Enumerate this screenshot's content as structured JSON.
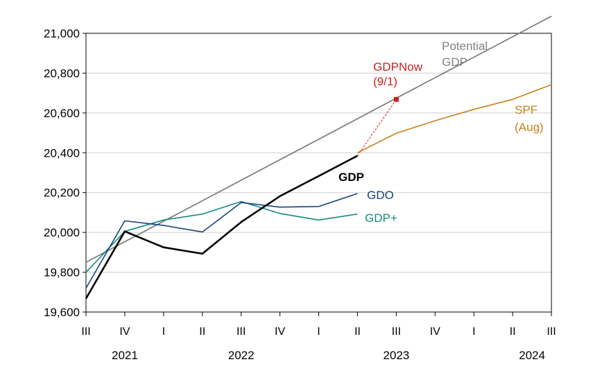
{
  "chart_data": {
    "type": "line",
    "title": "",
    "xlabel": "",
    "ylabel": "",
    "ylim": [
      19600,
      21000
    ],
    "yticks": [
      "19,600",
      "19,800",
      "20,000",
      "20,200",
      "20,400",
      "20,600",
      "20,800",
      "21,000"
    ],
    "ytick_values": [
      19600,
      19800,
      20000,
      20200,
      20400,
      20600,
      20800,
      21000
    ],
    "grid": "horizontal",
    "quarters": [
      "III",
      "IV",
      "I",
      "II",
      "III",
      "IV",
      "I",
      "II",
      "III",
      "IV",
      "I",
      "II",
      "III"
    ],
    "years": [
      {
        "label": "2021",
        "center_index": 1
      },
      {
        "label": "2022",
        "center_index": 4
      },
      {
        "label": "2023",
        "center_index": 8
      },
      {
        "label": "2024",
        "center_index": 11.5
      }
    ],
    "series": [
      {
        "name": "Potential GDP",
        "label_lines": [
          "Potential",
          "GDP"
        ],
        "color": "#808080",
        "values": [
          19850,
          19953,
          20056,
          20159,
          20262,
          20365,
          20468,
          20571,
          20674,
          20777,
          20880,
          20983,
          21086
        ]
      },
      {
        "name": "GDP+",
        "label_lines": [
          "GDP+"
        ],
        "color": "#138a7e",
        "values": [
          19800,
          20005,
          20062,
          20092,
          20155,
          20095,
          20062,
          20092,
          null,
          null,
          null,
          null,
          null
        ]
      },
      {
        "name": "GDO",
        "label_lines": [
          "GDO"
        ],
        "color": "#15437a",
        "values": [
          19720,
          20058,
          20035,
          20002,
          20150,
          20127,
          20130,
          20195,
          null,
          null,
          null,
          null,
          null
        ]
      },
      {
        "name": "GDP",
        "label_lines": [
          "GDP"
        ],
        "color": "#000000",
        "values": [
          19668,
          20005,
          19925,
          19893,
          20052,
          20182,
          20283,
          20385,
          null,
          null,
          null,
          null,
          null
        ]
      },
      {
        "name": "SPF (Aug)",
        "label_lines": [
          "SPF",
          "(Aug)"
        ],
        "color": "#c8801a",
        "values": [
          null,
          null,
          null,
          null,
          null,
          null,
          null,
          20400,
          20498,
          20561,
          20618,
          20668,
          20742
        ]
      }
    ],
    "annotations": [
      {
        "name": "GDPNow (9/1)",
        "label_lines": [
          "GDPNow",
          "(9/1)"
        ],
        "color": "#cc1f1f",
        "from": {
          "x_index": 7,
          "y": 20385
        },
        "to": {
          "x_index": 8,
          "y": 20668
        }
      }
    ]
  }
}
